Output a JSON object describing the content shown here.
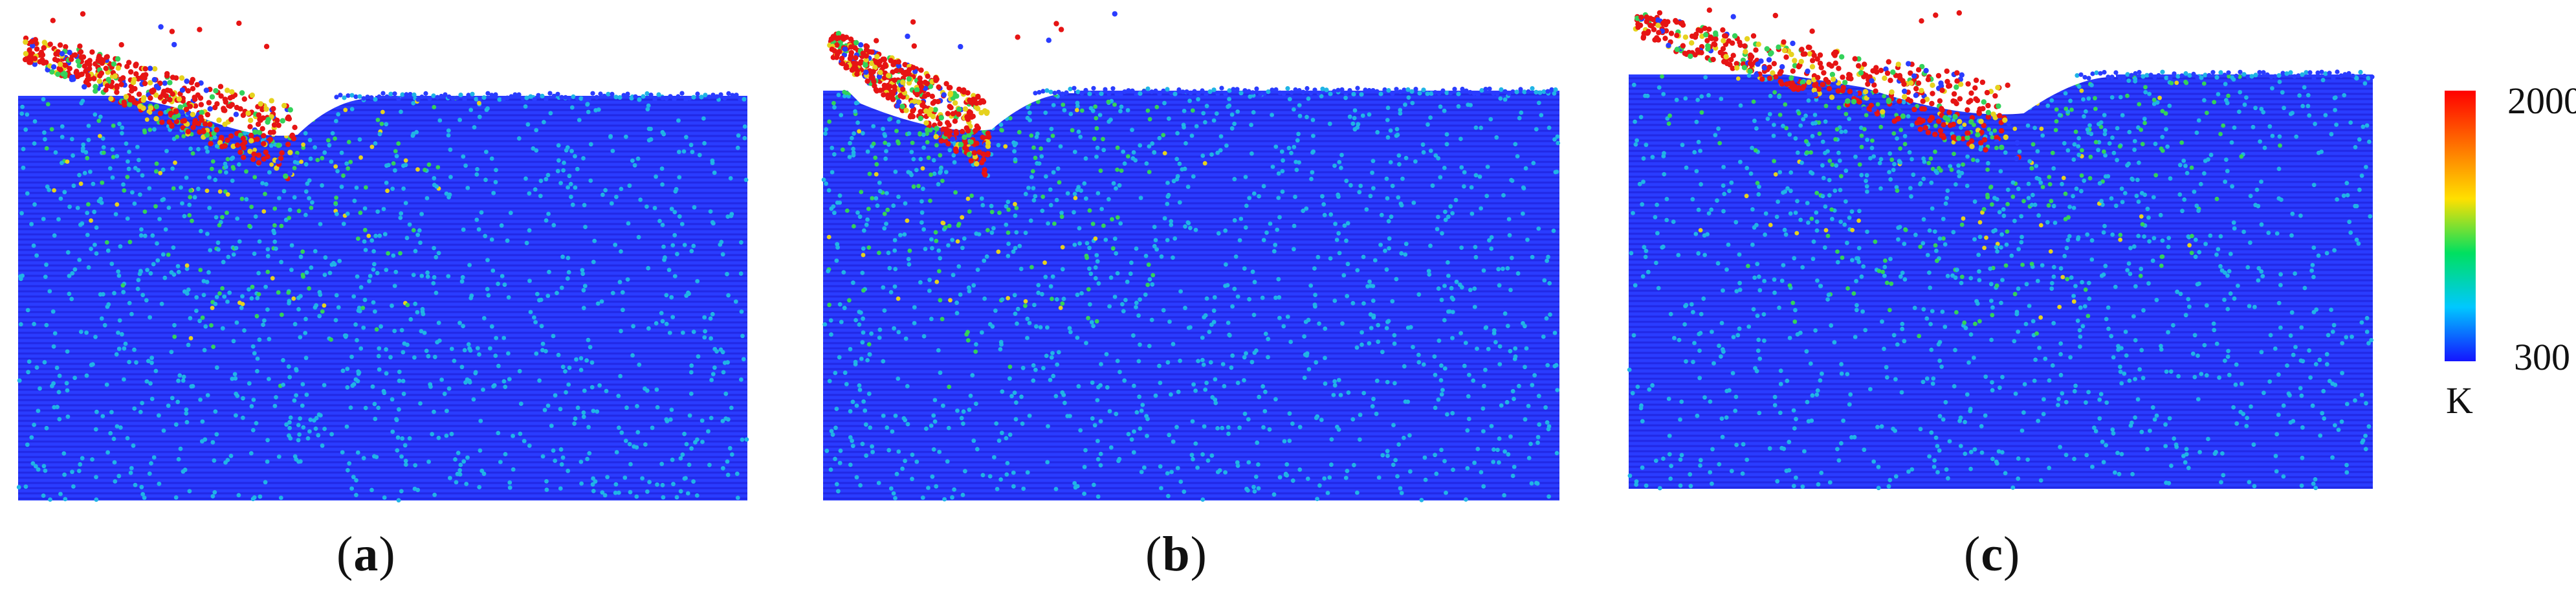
{
  "panels": [
    {
      "id": "a",
      "label": "a",
      "caption_open": "(",
      "caption_close": ")"
    },
    {
      "id": "b",
      "label": "b",
      "caption_open": "(",
      "caption_close": ")"
    },
    {
      "id": "c",
      "label": "c",
      "caption_open": "(",
      "caption_close": ")"
    }
  ],
  "colorbar": {
    "max_label": "2000",
    "min_label": "300",
    "unit": "K",
    "colors": [
      "#1414ff",
      "#00c8ff",
      "#00e060",
      "#ffe000",
      "#ff7000",
      "#ff0000"
    ]
  },
  "colors": {
    "substrate_dark": "#1a1ad0",
    "substrate_blue": "#2a3cff",
    "cool_cyan": "#20b4e6",
    "warm_green": "#34d25a",
    "hot_yellow": "#e6d21e",
    "hot_red": "#e61414"
  }
}
